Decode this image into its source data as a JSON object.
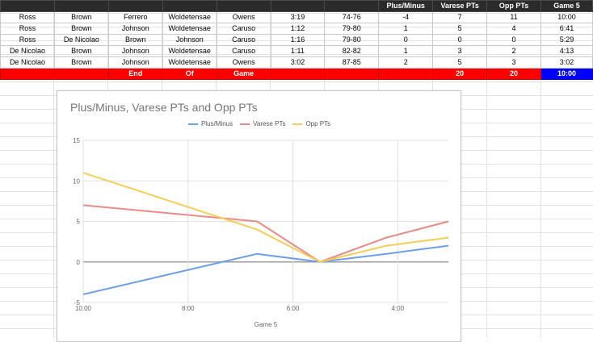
{
  "sheet": {
    "headers": [
      "",
      "",
      "",
      "",
      "",
      "",
      "",
      "Plus/Minus",
      "Varese PTs",
      "Opp PTs",
      "Game 5"
    ],
    "rows": [
      [
        "Ross",
        "Brown",
        "Ferrero",
        "Woldetensae",
        "Owens",
        "3:19",
        "74-76",
        "-4",
        "7",
        "11",
        "10:00"
      ],
      [
        "Ross",
        "Brown",
        "Johnson",
        "Woldetensae",
        "Caruso",
        "1:12",
        "79-80",
        "1",
        "5",
        "4",
        "6:41"
      ],
      [
        "Ross",
        "De Nicolao",
        "Brown",
        "Johnson",
        "Caruso",
        "1:16",
        "79-80",
        "0",
        "0",
        "0",
        "5:29"
      ],
      [
        "De Nicolao",
        "Brown",
        "Johnson",
        "Woldetensae",
        "Caruso",
        "1:11",
        "82-82",
        "1",
        "3",
        "2",
        "4:13"
      ],
      [
        "De Nicolao",
        "Brown",
        "Johnson",
        "Woldetensae",
        "Owens",
        "3:02",
        "87-85",
        "2",
        "5",
        "3",
        "3:02"
      ]
    ],
    "end_row": [
      "",
      "",
      "End",
      "Of",
      "Game",
      "",
      "",
      "",
      "20",
      "20",
      "10:00"
    ]
  },
  "chart_data": {
    "type": "line",
    "title": "Plus/Minus, Varese PTs and Opp PTs",
    "xlabel": "Game 5",
    "ylabel": "",
    "x": [
      "10:00",
      "6:41",
      "5:29",
      "4:13",
      "3:02"
    ],
    "x_minutes": [
      10.0,
      6.6833,
      5.4833,
      4.2167,
      3.0333
    ],
    "xlim_minutes": [
      10.0,
      3.0333
    ],
    "x_ticks": [
      "10:00",
      "8:00",
      "6:00",
      "4:00"
    ],
    "x_ticks_minutes": [
      10,
      8,
      6,
      4
    ],
    "ylim": [
      -5,
      15
    ],
    "y_ticks": [
      -5,
      0,
      5,
      10,
      15
    ],
    "legend_position": "top",
    "series": [
      {
        "name": "Plus/Minus",
        "color": "#6d9eeb",
        "values": [
          -4,
          1,
          0,
          1,
          2
        ]
      },
      {
        "name": "Varese PTs",
        "color": "#ea8a86",
        "values": [
          7,
          5,
          0,
          3,
          5
        ]
      },
      {
        "name": "Opp PTs",
        "color": "#f6cd56",
        "values": [
          11,
          4,
          0,
          2,
          3
        ]
      }
    ]
  }
}
